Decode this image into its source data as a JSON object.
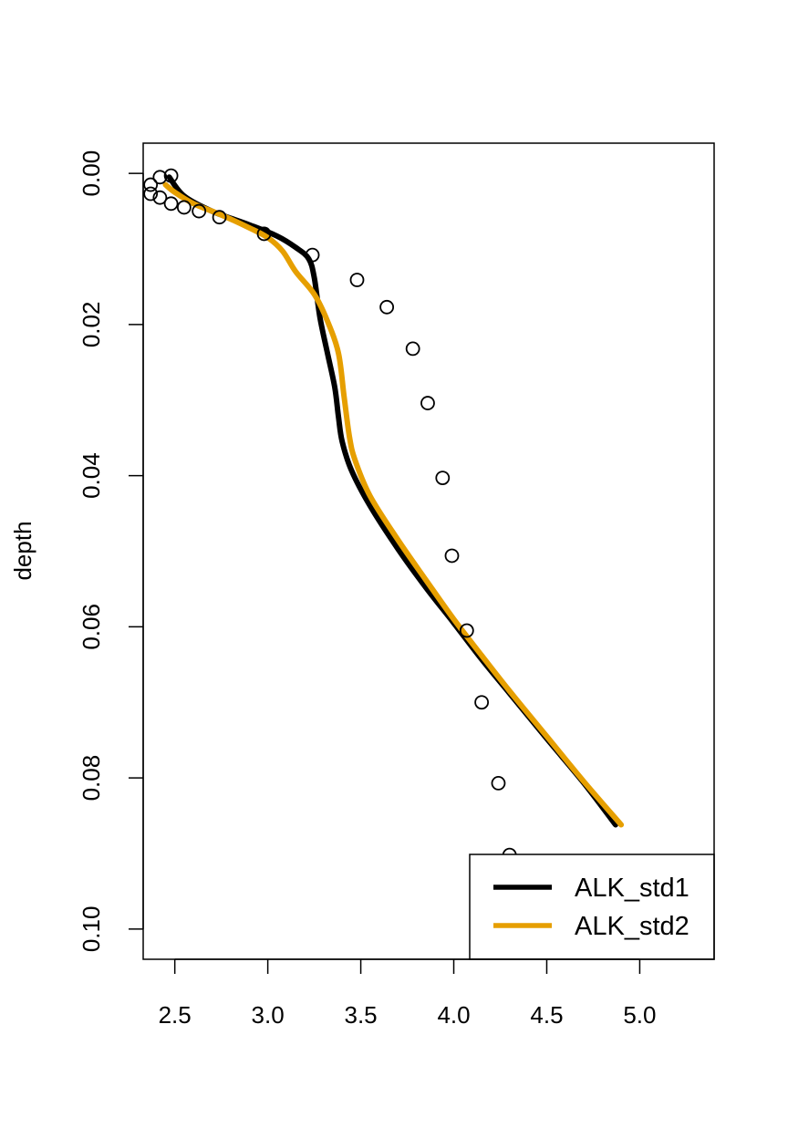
{
  "chart_data": {
    "type": "line",
    "title": "",
    "xlabel": "",
    "ylabel": "depth",
    "xlim": [
      2.33,
      5.4
    ],
    "ylim": [
      0.104,
      -0.004
    ],
    "y_reversed": true,
    "xticks": [
      "2.5",
      "3.0",
      "3.5",
      "4.0",
      "4.5",
      "5.0"
    ],
    "xtick_values": [
      2.5,
      3.0,
      3.5,
      4.0,
      4.5,
      5.0
    ],
    "yticks": [
      "0.00",
      "0.02",
      "0.04",
      "0.06",
      "0.08",
      "0.10"
    ],
    "ytick_values": [
      0.0,
      0.02,
      0.04,
      0.06,
      0.08,
      0.1
    ],
    "grid": false,
    "legend_position": "bottom-right",
    "legend_entries": [
      "ALK_std1",
      "ALK_std2"
    ],
    "series": [
      {
        "name": "ALK_std1",
        "kind": "line",
        "color": "#000000",
        "x": [
          2.47,
          2.55,
          2.7,
          2.9,
          3.05,
          3.15,
          3.22,
          3.25,
          3.28,
          3.32,
          3.36,
          3.38,
          3.4,
          3.45,
          3.55,
          3.7,
          3.85,
          4.0,
          4.15,
          4.3,
          4.5,
          4.7,
          4.87
        ],
        "y": [
          0.0005,
          0.003,
          0.005,
          0.0068,
          0.0083,
          0.0098,
          0.0113,
          0.0138,
          0.019,
          0.0237,
          0.0283,
          0.0322,
          0.0355,
          0.0393,
          0.044,
          0.0497,
          0.0548,
          0.0595,
          0.0643,
          0.0688,
          0.0748,
          0.0807,
          0.0862
        ]
      },
      {
        "name": "ALK_std2",
        "kind": "line",
        "color": "#E69F00",
        "x": [
          2.45,
          2.5,
          2.6,
          2.75,
          2.9,
          3.0,
          3.08,
          3.15,
          3.25,
          3.32,
          3.38,
          3.41,
          3.44,
          3.47,
          3.55,
          3.7,
          3.85,
          4.0,
          4.15,
          4.3,
          4.5,
          4.7,
          4.9
        ],
        "y": [
          0.0015,
          0.0025,
          0.004,
          0.0055,
          0.0072,
          0.0085,
          0.0103,
          0.013,
          0.016,
          0.0195,
          0.0238,
          0.0295,
          0.035,
          0.038,
          0.0427,
          0.0485,
          0.0538,
          0.059,
          0.0638,
          0.0685,
          0.0745,
          0.0805,
          0.0862
        ]
      },
      {
        "name": "",
        "kind": "points",
        "color": "#000000",
        "x": [
          2.48,
          2.42,
          2.37,
          2.37,
          2.42,
          2.48,
          2.55,
          2.63,
          2.74,
          2.98,
          3.24,
          3.48,
          3.64,
          3.78,
          3.86,
          3.94,
          3.99,
          4.07,
          4.15,
          4.24,
          4.3,
          4.38
        ],
        "y": [
          0.0003,
          0.0005,
          0.0015,
          0.0027,
          0.0032,
          0.004,
          0.0045,
          0.005,
          0.0058,
          0.008,
          0.0108,
          0.0141,
          0.0177,
          0.0232,
          0.0304,
          0.0403,
          0.0506,
          0.0605,
          0.07,
          0.0807,
          0.0902,
          0.0982
        ]
      }
    ]
  }
}
